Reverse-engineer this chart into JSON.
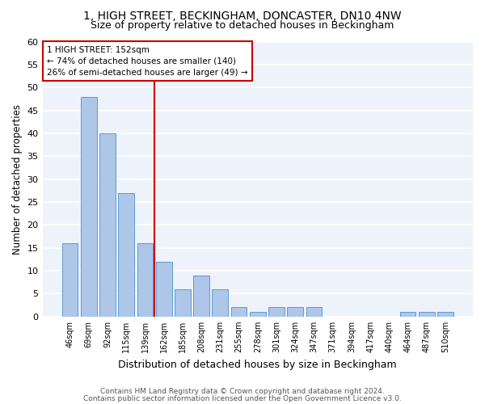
{
  "title1": "1, HIGH STREET, BECKINGHAM, DONCASTER, DN10 4NW",
  "title2": "Size of property relative to detached houses in Beckingham",
  "xlabel": "Distribution of detached houses by size in Beckingham",
  "ylabel": "Number of detached properties",
  "categories": [
    "46sqm",
    "69sqm",
    "92sqm",
    "115sqm",
    "139sqm",
    "162sqm",
    "185sqm",
    "208sqm",
    "231sqm",
    "255sqm",
    "278sqm",
    "301sqm",
    "324sqm",
    "347sqm",
    "371sqm",
    "394sqm",
    "417sqm",
    "440sqm",
    "464sqm",
    "487sqm",
    "510sqm"
  ],
  "values": [
    16,
    48,
    40,
    27,
    16,
    12,
    6,
    9,
    6,
    2,
    1,
    2,
    2,
    2,
    0,
    0,
    0,
    0,
    1,
    1,
    1
  ],
  "bar_color": "#aec6e8",
  "bar_edge_color": "#5b9bd5",
  "vline_x": 4.5,
  "vline_color": "#cc0000",
  "annotation_line1": "1 HIGH STREET: 152sqm",
  "annotation_line2": "← 74% of detached houses are smaller (140)",
  "annotation_line3": "26% of semi-detached houses are larger (49) →",
  "annotation_box_color": "#cc0000",
  "ylim": [
    0,
    60
  ],
  "yticks": [
    0,
    5,
    10,
    15,
    20,
    25,
    30,
    35,
    40,
    45,
    50,
    55,
    60
  ],
  "footer1": "Contains HM Land Registry data © Crown copyright and database right 2024.",
  "footer2": "Contains public sector information licensed under the Open Government Licence v3.0.",
  "background_color": "#eef3fb",
  "grid_color": "#ffffff",
  "title1_fontsize": 10,
  "title2_fontsize": 9,
  "xlabel_fontsize": 9,
  "ylabel_fontsize": 8.5,
  "footer_fontsize": 6.5
}
